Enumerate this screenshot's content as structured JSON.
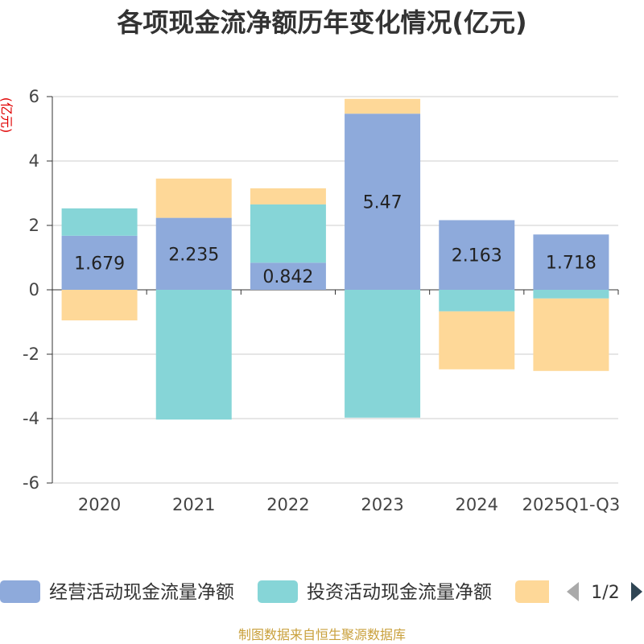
{
  "colors": {
    "axis": "#333333",
    "grid": "#cccccc",
    "ylabel": "#e00000",
    "footer": "#c9a03c",
    "legend_arrow_active": "#2f4554",
    "legend_arrow_inactive": "#aaaaaa"
  },
  "chart_data": {
    "type": "bar",
    "stacked": true,
    "title": "各项现金流净额历年变化情况(亿元)",
    "xlabel": "",
    "ylabel": "(亿元)",
    "ylim": [
      -6,
      6
    ],
    "yticks": [
      6,
      4,
      2,
      0,
      -2,
      -4,
      -6
    ],
    "grid": true,
    "categories": [
      "2020",
      "2021",
      "2022",
      "2023",
      "2024",
      "2025Q1-Q3"
    ],
    "series": [
      {
        "name": "经营活动现金流量净额",
        "color": "#8eaadb",
        "values": [
          1.679,
          2.235,
          0.842,
          5.47,
          2.163,
          1.718
        ],
        "show_labels": true
      },
      {
        "name": "投资活动现金流量净额",
        "color": "#86d5d7",
        "values": [
          0.85,
          -4.03,
          1.81,
          -3.97,
          -0.67,
          -0.27
        ],
        "show_labels": false
      },
      {
        "color": "#fed898",
        "values": [
          -0.95,
          1.22,
          0.5,
          0.46,
          -1.8,
          -2.25
        ],
        "show_labels": false
      }
    ],
    "legend_position": "bottom"
  },
  "legend": {
    "page": "1/2",
    "prev_icon": "triangle-left-icon",
    "next_icon": "triangle-right-icon"
  },
  "footer": "制图数据来自恒生聚源数据库"
}
